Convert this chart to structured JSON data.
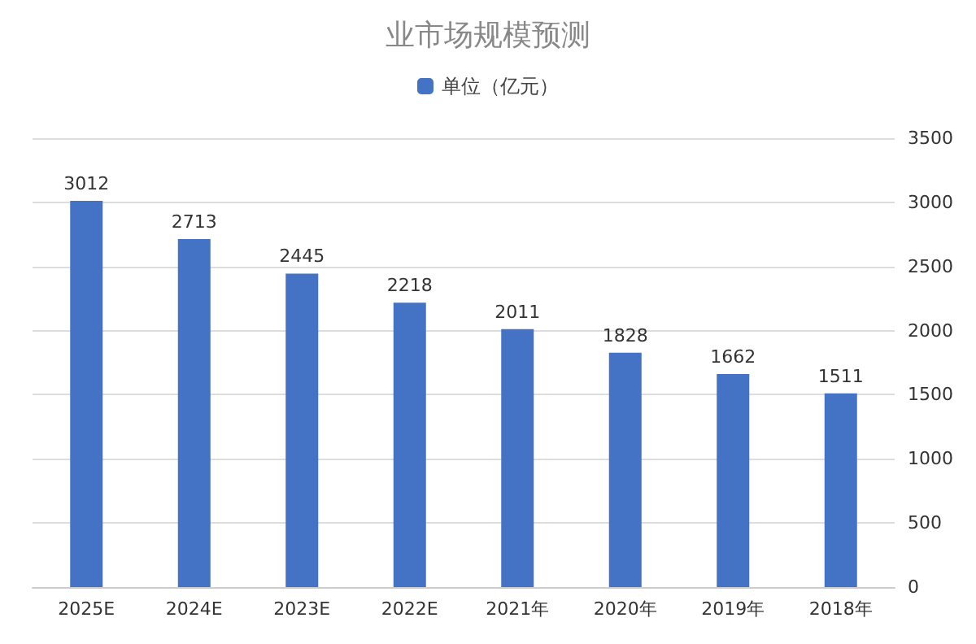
{
  "chart_data": {
    "type": "bar",
    "title": "业市场规模预测",
    "categories": [
      "2025E",
      "2024E",
      "2023E",
      "2022E",
      "2021年",
      "2020年",
      "2019年",
      "2018年"
    ],
    "series": [
      {
        "name": "单位（亿元）",
        "color": "#4472c4",
        "values": [
          3012,
          2713,
          2445,
          2218,
          2011,
          1828,
          1662,
          1511
        ]
      }
    ],
    "ylim": [
      0,
      3500
    ],
    "yticks": [
      0,
      500,
      1000,
      1500,
      2000,
      2500,
      3000,
      3500
    ],
    "grid": "y",
    "legend": "top",
    "data_labels": true
  }
}
